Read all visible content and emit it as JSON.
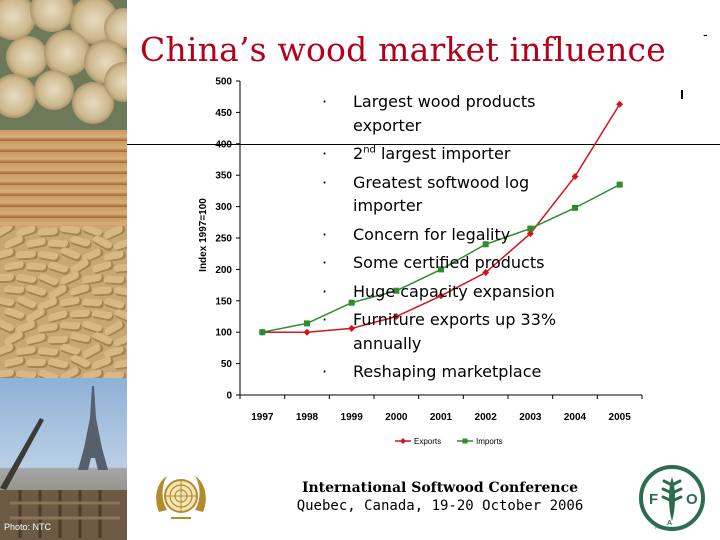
{
  "slide": {
    "title": "China’s wood market influence",
    "corner_mark": "-",
    "photo_credit": "Photo: NTC",
    "bullets": [
      {
        "text": "Largest wood products exporter"
      },
      {
        "pre": "2",
        "sup": "nd",
        "post": " largest importer"
      },
      {
        "text": "Greatest softwood log importer"
      },
      {
        "text": "Concern for legality"
      },
      {
        "text": "Some certified products"
      },
      {
        "text": "Huge capacity expansion"
      },
      {
        "text": "Furniture exports up 33% annually"
      },
      {
        "text": "Reshaping marketplace"
      }
    ],
    "bullet_marker": "·",
    "footer": {
      "conference": "International Softwood Conference",
      "place_date": "Quebec, Canada, 19-20 October 2006"
    },
    "logos": [
      "un-emblem",
      "fao-emblem"
    ],
    "fao_motto": "FIAT PANIS",
    "fao_letters": [
      "F",
      "A",
      "O"
    ]
  },
  "chart_data": {
    "type": "line",
    "title": "",
    "xlabel": "",
    "ylabel": "Index 1997=100",
    "x": [
      "1997",
      "1998",
      "1999",
      "2000",
      "2001",
      "2002",
      "2003",
      "2004",
      "2005"
    ],
    "ylim": [
      0,
      500
    ],
    "yticks": [
      0,
      50,
      100,
      150,
      200,
      250,
      300,
      350,
      400,
      450,
      500
    ],
    "grid": false,
    "legend_position": "bottom",
    "series": [
      {
        "name": "Exports",
        "color": "#d4141e",
        "marker": "diamond",
        "values": [
          100,
          100,
          106,
          125,
          158,
          195,
          257,
          348,
          463
        ]
      },
      {
        "name": "Imports",
        "color": "#2e8b2e",
        "marker": "square",
        "values": [
          100,
          114,
          147,
          166,
          200,
          240,
          265,
          298,
          335
        ]
      }
    ]
  }
}
